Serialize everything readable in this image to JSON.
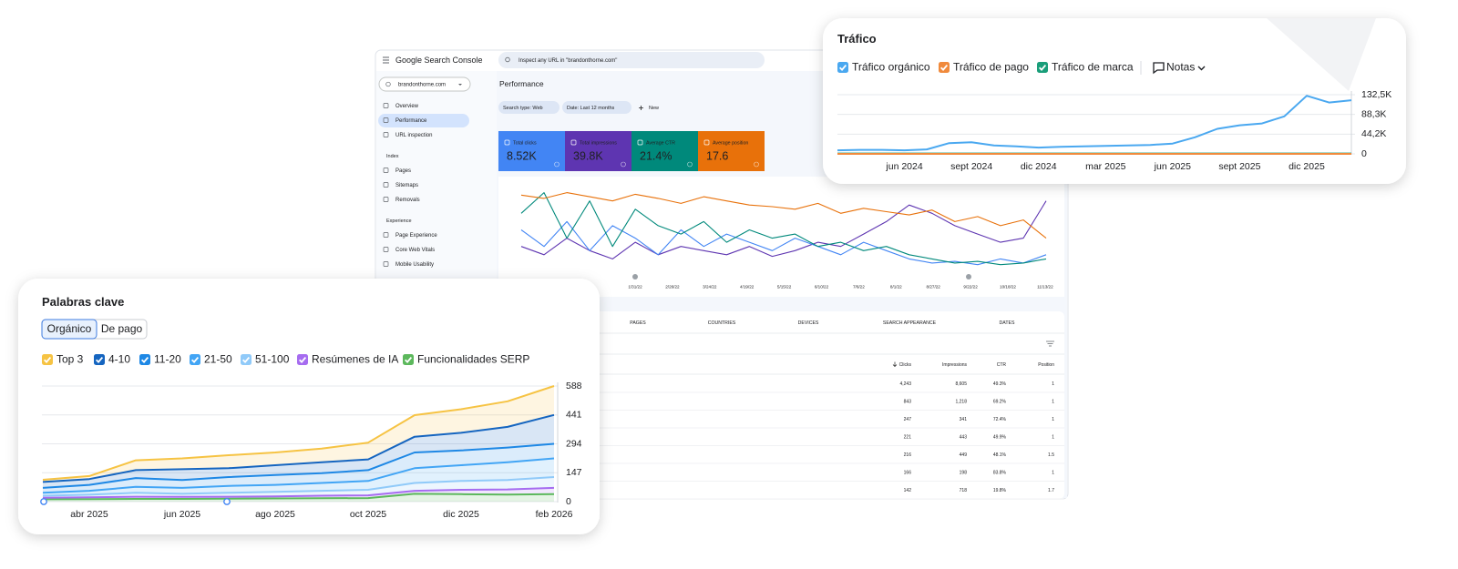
{
  "search_console": {
    "logo": "Google Search Console",
    "search_placeholder": "Inspect any URL in \"brandonthorne.com\"",
    "property": "brandonthorne.com",
    "nav": [
      "Overview",
      "Performance",
      "URL inspection"
    ],
    "index_section": "Index",
    "index_nav": [
      "Pages",
      "Sitemaps",
      "Removals"
    ],
    "experience_section": "Experience",
    "experience_nav": [
      "Page Experience",
      "Core Web Vitals",
      "Mobile Usability"
    ],
    "page_title": "Performance",
    "filters": [
      "Search type: Web",
      "Date: Last 12 months"
    ],
    "new_button": "New",
    "metrics": [
      {
        "label": "Total clicks",
        "value": "8.52K",
        "color": "#4285f4"
      },
      {
        "label": "Total impressions",
        "value": "39.8K",
        "color": "#5e35b1"
      },
      {
        "label": "Average CTR",
        "value": "21.4%",
        "color": "#00897b"
      },
      {
        "label": "Average position",
        "value": "17.6",
        "color": "#e8710a"
      }
    ],
    "chart": {
      "type": "line",
      "ylim": [
        0,
        100
      ],
      "series": [
        {
          "color": "#e8710a",
          "values": [
            92,
            88,
            95,
            90,
            85,
            93,
            88,
            82,
            90,
            85,
            80,
            78,
            75,
            82,
            70,
            76,
            72,
            68,
            74,
            60,
            66,
            55,
            62,
            40
          ]
        },
        {
          "color": "#00897b",
          "values": [
            70,
            95,
            40,
            85,
            30,
            75,
            55,
            45,
            60,
            35,
            50,
            40,
            45,
            30,
            35,
            25,
            30,
            20,
            15,
            10,
            12,
            8,
            10,
            15
          ]
        },
        {
          "color": "#4285f4",
          "values": [
            50,
            30,
            60,
            25,
            55,
            40,
            20,
            50,
            30,
            45,
            35,
            25,
            40,
            30,
            20,
            35,
            25,
            15,
            10,
            12,
            8,
            15,
            10,
            20
          ]
        },
        {
          "color": "#5e35b1",
          "values": [
            30,
            20,
            40,
            25,
            15,
            35,
            20,
            30,
            25,
            20,
            30,
            18,
            25,
            35,
            30,
            45,
            60,
            80,
            70,
            55,
            45,
            35,
            40,
            85
          ]
        }
      ],
      "x_labels": [
        "1/31/22",
        "2/26/22",
        "3/24/22",
        "4/19/22",
        "5/15/22",
        "6/10/22",
        "7/6/22",
        "8/1/22",
        "8/27/22",
        "9/22/22",
        "10/18/22",
        "11/13/22"
      ]
    },
    "tabs": [
      "PAGES",
      "COUNTRIES",
      "DEVICES",
      "SEARCH APPEARANCE",
      "DATES"
    ],
    "table": {
      "columns": [
        "Clicks",
        "Impressions",
        "CTR",
        "Position"
      ],
      "rows": [
        [
          "4,243",
          "8,605",
          "49.3%",
          "1"
        ],
        [
          "843",
          "1,218",
          "69.2%",
          "1"
        ],
        [
          "247",
          "341",
          "72.4%",
          "1"
        ],
        [
          "221",
          "443",
          "49.9%",
          "1"
        ],
        [
          "216",
          "449",
          "48.1%",
          "1.5"
        ],
        [
          "166",
          "198",
          "83.8%",
          "1"
        ],
        [
          "142",
          "718",
          "19.8%",
          "1.7"
        ]
      ]
    }
  },
  "traffic": {
    "title": "Tráfico",
    "notes": "Notas",
    "chart": {
      "type": "line",
      "categories": [
        null,
        null,
        null,
        "jun 2024",
        null,
        null,
        "sept 2024",
        null,
        null,
        "dic 2024",
        null,
        null,
        "mar 2025",
        null,
        null,
        "jun 2025",
        null,
        null,
        "sept 2025",
        null,
        null,
        "dic 2025",
        null,
        null
      ],
      "series": [
        {
          "name": "Tráfico orgánico",
          "color": "#4aa8f0",
          "values": [
            8000,
            9000,
            9000,
            8000,
            10000,
            24000,
            26000,
            19000,
            17000,
            14000,
            16000,
            17000,
            18000,
            19000,
            20000,
            23000,
            37000,
            56000,
            64000,
            68000,
            84000,
            130000,
            115000,
            120000
          ]
        },
        {
          "name": "Tráfico de pago",
          "color": "#f08a3c",
          "values": [
            0,
            0,
            0,
            0,
            0,
            0,
            0,
            0,
            0,
            0,
            0,
            0,
            0,
            0,
            0,
            0,
            0,
            0,
            0,
            0,
            0,
            0,
            0,
            0
          ]
        },
        {
          "name": "Tráfico de marca",
          "color": "#1a9e7a",
          "values": [
            800,
            800,
            800,
            800,
            800,
            800,
            800,
            800,
            800,
            800,
            800,
            800,
            800,
            800,
            800,
            800,
            800,
            800,
            800,
            800,
            800,
            800,
            800,
            800
          ]
        }
      ],
      "ylim": [
        0,
        132500
      ],
      "yticks": [
        0,
        {
          "value": 44200,
          "label": "44,2K"
        },
        {
          "value": 88300,
          "label": "88,3K"
        },
        {
          "value": 132500,
          "label": "132,5K"
        }
      ],
      "grid": true
    }
  },
  "keywords": {
    "title": "Palabras clave",
    "tabs": [
      "Orgánico",
      "De pago"
    ],
    "chart": {
      "type": "area",
      "stacked": true,
      "categories": [
        null,
        "abr 2025",
        null,
        "jun 2025",
        null,
        "ago 2025",
        null,
        "oct 2025",
        null,
        "dic 2025",
        null,
        "feb 2026"
      ],
      "series": [
        {
          "name": "Top 3",
          "color": "#f6c343",
          "values": [
            11,
            15,
            50,
            55,
            66,
            65,
            70,
            85,
            110,
            120,
            130,
            147
          ]
        },
        {
          "name": "4-10",
          "color": "#1565c0",
          "values": [
            30,
            30,
            40,
            55,
            45,
            50,
            55,
            55,
            80,
            90,
            105,
            147
          ]
        },
        {
          "name": "11-20",
          "color": "#1e88e5",
          "values": [
            25,
            30,
            45,
            40,
            45,
            50,
            50,
            55,
            80,
            75,
            75,
            74
          ]
        },
        {
          "name": "21-50",
          "color": "#42a5f5",
          "values": [
            15,
            20,
            30,
            30,
            35,
            35,
            40,
            45,
            75,
            80,
            90,
            95
          ]
        },
        {
          "name": "51-100",
          "color": "#90caf9",
          "values": [
            10,
            13,
            20,
            16,
            20,
            23,
            25,
            28,
            40,
            45,
            48,
            55
          ]
        },
        {
          "name": "Resúmenes de IA",
          "color": "#a66cf0",
          "values": [
            8,
            9,
            11,
            10,
            10,
            11,
            13,
            14,
            15,
            22,
            26,
            32
          ]
        },
        {
          "name": "Funcionalidades SERP",
          "color": "#5cb85c",
          "values": [
            12,
            13,
            14,
            14,
            15,
            16,
            17,
            18,
            40,
            38,
            36,
            38
          ]
        }
      ],
      "ylim": [
        0,
        588
      ],
      "yticks": [
        0,
        147,
        294,
        441,
        588
      ],
      "grid": true
    }
  }
}
